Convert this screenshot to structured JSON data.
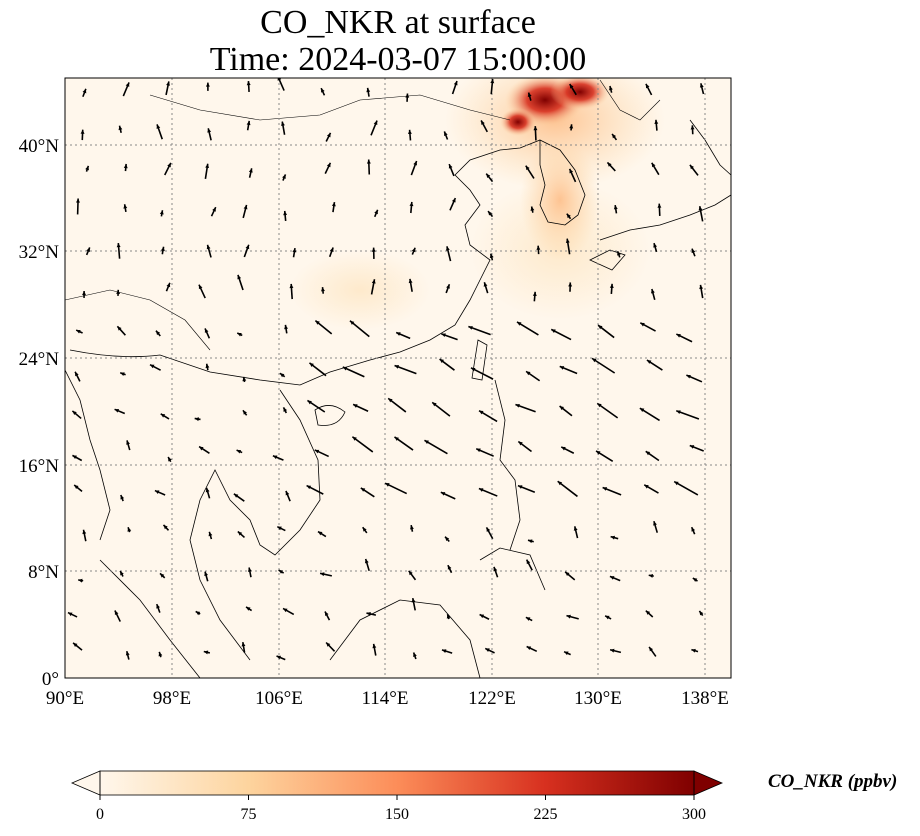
{
  "title": {
    "line1": "CO_NKR at surface",
    "line2": "Time: 2024-03-07 15:00:00"
  },
  "map": {
    "lon_range": [
      90,
      140
    ],
    "lat_range": [
      0,
      45
    ],
    "lon_ticks": [
      "90°E",
      "98°E",
      "106°E",
      "114°E",
      "122°E",
      "130°E",
      "138°E"
    ],
    "lat_ticks": [
      "0°",
      "8°N",
      "16°N",
      "24°N",
      "32°N",
      "40°N"
    ],
    "grid": "dotted",
    "coastlines": true,
    "wind_vectors": true
  },
  "colorbar": {
    "label": "CO_NKR (ppbv)",
    "ticks": [
      "0",
      "75",
      "150",
      "225",
      "300"
    ],
    "range": [
      0,
      300
    ],
    "colormap": "OrRd",
    "colors": [
      "#fff7ec",
      "#fdd49e",
      "#fc8d59",
      "#d7301f",
      "#7f0000"
    ],
    "extend": "both"
  },
  "hotspots": [
    {
      "region": "Northeast China / North Korea",
      "level": "high"
    },
    {
      "region": "Korean Peninsula / Yellow Sea",
      "level": "moderate"
    }
  ]
}
